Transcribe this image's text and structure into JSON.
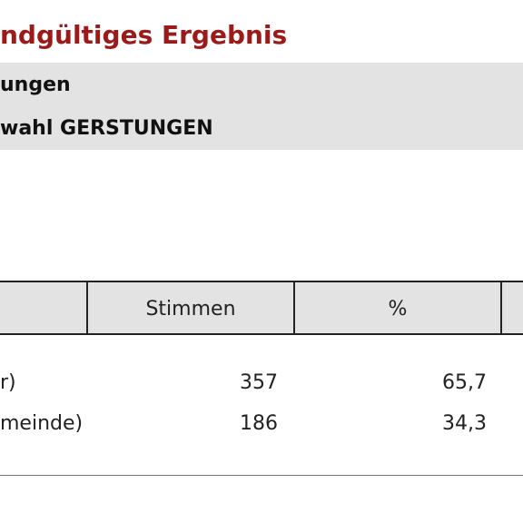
{
  "header": {
    "title": "ndgültiges Ergebnis",
    "line1": "ungen",
    "line2": "wahl GERSTUNGEN"
  },
  "table": {
    "columns": [
      "",
      "Stimmen",
      "%"
    ],
    "rows": [
      {
        "name": "r)",
        "votes": "357",
        "percent": "65,7"
      },
      {
        "name": "meinde)",
        "votes": "186",
        "percent": "34,3"
      }
    ]
  },
  "colors": {
    "title": "#9b1b1b",
    "band": "#e3e3e3"
  }
}
